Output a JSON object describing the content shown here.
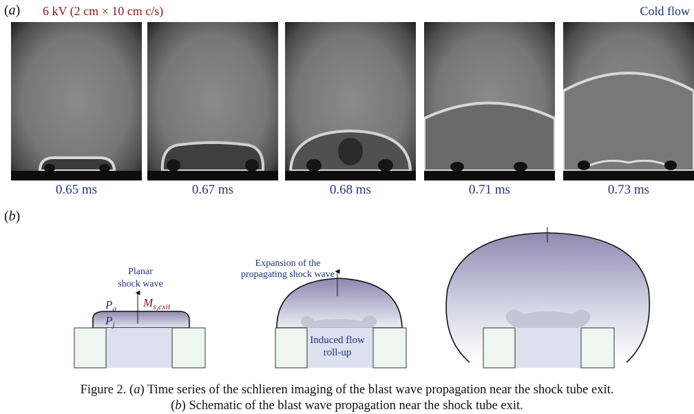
{
  "panel_a": {
    "label": "(a)",
    "condition": "6 kV (2 cm × 10 cm c/s)",
    "flow_type": "Cold flow",
    "frames": [
      {
        "time": "0.65 ms"
      },
      {
        "time": "0.67 ms"
      },
      {
        "time": "0.68 ms"
      },
      {
        "time": "0.71 ms"
      },
      {
        "time": "0.73 ms"
      }
    ]
  },
  "panel_b": {
    "label": "(b)",
    "planar_label_1": "Planar",
    "planar_label_2": "shock wave",
    "pa": "P",
    "pa_sub": "a",
    "pj": "P",
    "pj_sub": "j",
    "ms": "M",
    "ms_sub": "s,exit",
    "expansion_1": "Expansion of the",
    "expansion_2": "propagating shock wave",
    "rollup_1": "Induced flow",
    "rollup_2": "roll-up"
  },
  "caption": {
    "line1_prefix": "Figure  2.  (",
    "line1_a": "a",
    "line1_text": ") Time series of the schlieren imaging of the blast wave propagation near the shock tube exit.",
    "line2_prefix": "(",
    "line2_b": "b",
    "line2_text": ") Schematic of the blast wave propagation near the shock tube exit."
  },
  "colors": {
    "condition": "#8b1a1a",
    "flow": "#1f2f7a",
    "time": "#27337d",
    "mach": "#8b1a1a"
  }
}
